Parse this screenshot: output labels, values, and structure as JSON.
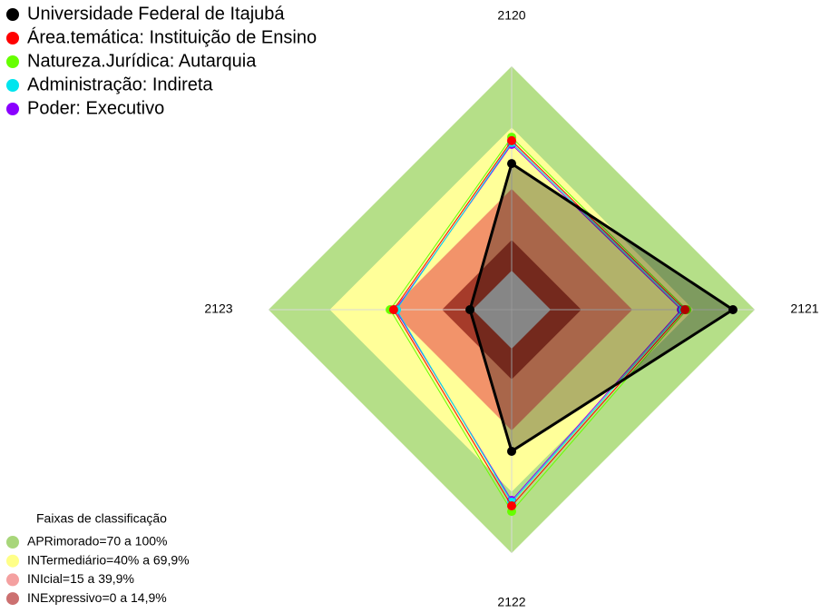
{
  "chart_data": {
    "type": "radar",
    "axes": [
      "2120",
      "2121",
      "2122",
      "2123"
    ],
    "rlim": [
      0,
      100
    ],
    "bands_title": "Faixas de classificação",
    "bands": [
      {
        "name": "APRimorado=70 a 100%",
        "from": 70,
        "to": 100,
        "color": "#b5df88",
        "legend_color": "#a8d67a"
      },
      {
        "name": "INTermediário=40% a 69,9%",
        "from": 40,
        "to": 70,
        "color": "#ffff99",
        "legend_color": "#ffff88"
      },
      {
        "name": "INIcial=15 a 39,9%",
        "from": 15,
        "to": 40,
        "color": "#f2936a",
        "legend_color": "#f4a0a0"
      },
      {
        "name": "INExpressivo=0 a 14,9%",
        "from": 0,
        "to": 15,
        "color": "#a63b2a",
        "legend_color": "#cc7070"
      }
    ],
    "series": [
      {
        "name": "Universidade Federal de Itajubá",
        "color": "#000000",
        "values": [
          52.4,
          89.3,
          50.2,
          1.3
        ]
      },
      {
        "name": "Área.temática: Instituição de Ensino",
        "color": "#ff0000",
        "values": [
          63.6,
          65.8,
          76.9,
          38.7
        ]
      },
      {
        "name": "Natureza.Jurídica: Autarquia",
        "color": "#66ff00",
        "values": [
          65.3,
          66.7,
          79.6,
          40.4
        ]
      },
      {
        "name": "Administração: Indireta",
        "color": "#00e5ee",
        "values": [
          62.7,
          64.9,
          75.1,
          37.3
        ]
      },
      {
        "name": "Poder: Executivo",
        "color": "#8a00ff",
        "values": [
          61.8,
          64.0,
          74.2,
          37.8
        ]
      }
    ]
  }
}
